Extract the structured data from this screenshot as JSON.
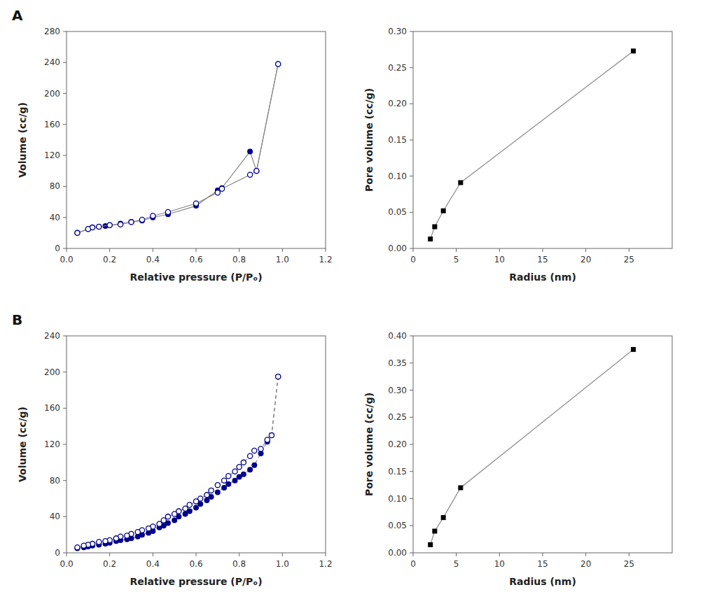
{
  "chart_data": [
    {
      "type": "line",
      "x_label": "Relative pressure (P/Pₒ)",
      "y_label": "Volume (cc/g)",
      "annotations": [
        "A"
      ],
      "xlim": [
        0,
        1.2
      ],
      "ylim": [
        0,
        280
      ],
      "xticks": [
        {
          "value": 0,
          "label": "0.0"
        },
        0.2,
        0.4,
        0.6,
        0.8,
        {
          "value": 1,
          "label": "1.0"
        },
        1.2
      ],
      "yticks": [
        0,
        40,
        80,
        120,
        160,
        200,
        240,
        280
      ],
      "grid": false,
      "series": [
        {
          "color": "#00008B",
          "marker": "circle",
          "line_style": "solid",
          "x": [
            0.05,
            0.1,
            0.12,
            0.15,
            0.18,
            0.2,
            0.25,
            0.3,
            0.35,
            0.4,
            0.47,
            0.6,
            0.7,
            0.72,
            0.85,
            0.88,
            0.98
          ],
          "values": [
            20,
            25,
            27,
            28,
            29,
            30,
            32,
            34,
            36,
            40,
            44,
            55,
            75,
            78,
            125,
            100,
            238
          ]
        },
        {
          "color": "#00008B",
          "marker": "circle-open",
          "line_style": "solid",
          "x": [
            0.98,
            0.88,
            0.85,
            0.72,
            0.7,
            0.6,
            0.47,
            0.4,
            0.35,
            0.3,
            0.25,
            0.2,
            0.15,
            0.12,
            0.1,
            0.05
          ],
          "values": [
            238,
            100,
            95,
            77,
            72,
            58,
            47,
            42,
            37,
            34,
            31,
            30,
            28,
            27,
            25,
            20
          ]
        }
      ]
    },
    {
      "type": "line",
      "x_label": "Radius (nm)",
      "y_label": "Pore volume (cc/g)",
      "xlim": [
        0,
        30
      ],
      "ylim": [
        0,
        0.3
      ],
      "xticks": [
        0,
        5,
        10,
        15,
        20,
        25
      ],
      "yticks": [
        {
          "value": 0,
          "label": "0.00"
        },
        0.05,
        {
          "value": 0.1,
          "label": "0.10"
        },
        0.15,
        {
          "value": 0.2,
          "label": "0.20"
        },
        0.25,
        {
          "value": 0.3,
          "label": "0.30"
        }
      ],
      "grid": false,
      "series": [
        {
          "color": "#000000",
          "marker": "square",
          "line_style": "solid",
          "x": [
            2.0,
            2.5,
            3.5,
            5.5,
            25.5
          ],
          "values": [
            0.013,
            0.03,
            0.052,
            0.091,
            0.273
          ]
        }
      ]
    },
    {
      "type": "line",
      "x_label": "Relative pressure (P/Pₒ)",
      "y_label": "Volume (cc/g)",
      "annotations": [
        "B"
      ],
      "xlim": [
        0,
        1.2
      ],
      "ylim": [
        0,
        240
      ],
      "xticks": [
        {
          "value": 0,
          "label": "0.0"
        },
        0.2,
        0.4,
        0.6,
        0.8,
        {
          "value": 1,
          "label": "1.0"
        },
        1.2
      ],
      "yticks": [
        0,
        40,
        80,
        120,
        160,
        200,
        240
      ],
      "grid": false,
      "series": [
        {
          "color": "#00008B",
          "marker": "circle",
          "line_style": "dashed",
          "x": [
            0.05,
            0.08,
            0.1,
            0.12,
            0.15,
            0.18,
            0.2,
            0.23,
            0.25,
            0.28,
            0.3,
            0.33,
            0.35,
            0.38,
            0.4,
            0.43,
            0.45,
            0.47,
            0.5,
            0.52,
            0.55,
            0.57,
            0.6,
            0.62,
            0.65,
            0.67,
            0.7,
            0.73,
            0.75,
            0.78,
            0.8,
            0.82,
            0.85,
            0.87,
            0.9,
            0.93,
            0.95,
            0.98
          ],
          "values": [
            5,
            6,
            7,
            8,
            9,
            10,
            11,
            13,
            14,
            15,
            16,
            18,
            20,
            22,
            24,
            28,
            30,
            33,
            36,
            40,
            43,
            46,
            50,
            54,
            58,
            62,
            67,
            72,
            76,
            80,
            84,
            87,
            92,
            97,
            110,
            123,
            130,
            195
          ]
        },
        {
          "color": "#00008B",
          "marker": "circle-open",
          "line_style": "dashed",
          "x": [
            0.98,
            0.95,
            0.93,
            0.9,
            0.87,
            0.85,
            0.82,
            0.8,
            0.78,
            0.75,
            0.73,
            0.7,
            0.67,
            0.65,
            0.62,
            0.6,
            0.57,
            0.55,
            0.52,
            0.5,
            0.47,
            0.45,
            0.43,
            0.4,
            0.38,
            0.35,
            0.33,
            0.3,
            0.28,
            0.25,
            0.23,
            0.2,
            0.18,
            0.15,
            0.12,
            0.1,
            0.08,
            0.05
          ],
          "values": [
            195,
            130,
            125,
            115,
            113,
            107,
            100,
            95,
            90,
            85,
            80,
            75,
            69,
            64,
            60,
            57,
            53,
            49,
            46,
            43,
            40,
            36,
            32,
            29,
            27,
            25,
            23,
            21,
            19,
            18,
            16,
            14,
            13,
            12,
            10,
            9,
            8,
            6
          ]
        }
      ]
    },
    {
      "type": "line",
      "x_label": "Radius (nm)",
      "y_label": "Pore volume (cc/g)",
      "xlim": [
        0,
        30
      ],
      "ylim": [
        0,
        0.4
      ],
      "xticks": [
        0,
        5,
        10,
        15,
        20,
        25
      ],
      "yticks": [
        {
          "value": 0,
          "label": "0.00"
        },
        0.05,
        {
          "value": 0.1,
          "label": "0.10"
        },
        0.15,
        {
          "value": 0.2,
          "label": "0.20"
        },
        0.25,
        {
          "value": 0.3,
          "label": "0.30"
        },
        0.35,
        {
          "value": 0.4,
          "label": "0.40"
        }
      ],
      "grid": false,
      "series": [
        {
          "color": "#000000",
          "marker": "square",
          "line_style": "solid",
          "x": [
            2.0,
            2.5,
            3.5,
            5.5,
            25.5
          ],
          "values": [
            0.015,
            0.04,
            0.065,
            0.12,
            0.375
          ]
        }
      ]
    }
  ]
}
